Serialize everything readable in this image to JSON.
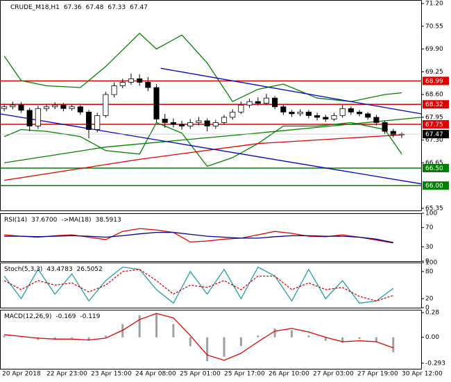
{
  "chart_data": {
    "type": "candlestick",
    "header": [
      "CRUDE_M18,H1",
      67.36,
      67.48,
      67.33,
      67.47
    ],
    "xlim": [
      -0.5,
      49.3
    ],
    "xlabels": [
      "20 Apr 2018",
      "22 Apr 23:00",
      "23 Apr 15:00",
      "24 Apr 08:00",
      "25 Apr 01:00",
      "25 Apr 17:00",
      "26 Apr 10:00",
      "27 Apr 03:00",
      "27 Apr 19:00",
      "30 Apr 12:00"
    ],
    "ylim": [
      65.29,
      71.3
    ],
    "yticks": [
      {
        "value": 71.2,
        "label": "71.20"
      },
      70.55,
      {
        "value": 69.9,
        "label": "69.90"
      },
      69.25,
      {
        "value": 68.6,
        "label": "68.60"
      },
      67.95,
      {
        "value": 67.3,
        "label": "67.30"
      },
      66.65,
      65.35
    ],
    "up_color": "#ffffff",
    "down_color": "#000000",
    "candles": [
      [
        68.2,
        68.32,
        68.12,
        68.25
      ],
      [
        68.25,
        68.4,
        68.18,
        68.3
      ],
      [
        68.3,
        68.38,
        68.08,
        68.15
      ],
      [
        68.15,
        68.22,
        67.55,
        67.7
      ],
      [
        67.7,
        68.28,
        67.62,
        68.2
      ],
      [
        68.2,
        68.33,
        68.12,
        68.25
      ],
      [
        68.25,
        68.38,
        68.18,
        68.3
      ],
      [
        68.3,
        68.36,
        68.12,
        68.2
      ],
      [
        68.2,
        68.32,
        68.14,
        68.25
      ],
      [
        68.25,
        68.3,
        68.02,
        68.1
      ],
      [
        68.1,
        68.16,
        67.35,
        67.6
      ],
      [
        67.6,
        68.08,
        67.52,
        68.0
      ],
      [
        68.0,
        68.68,
        67.94,
        68.6
      ],
      [
        68.6,
        68.95,
        68.52,
        68.85
      ],
      [
        68.85,
        69.05,
        68.78,
        68.95
      ],
      [
        68.95,
        69.2,
        68.88,
        69.05
      ],
      [
        69.05,
        69.18,
        68.85,
        68.95
      ],
      [
        68.95,
        69.1,
        68.7,
        68.8
      ],
      [
        68.8,
        68.9,
        67.8,
        67.9
      ],
      [
        67.9,
        68.05,
        67.65,
        67.8
      ],
      [
        67.8,
        67.92,
        67.66,
        67.75
      ],
      [
        67.75,
        67.85,
        67.6,
        67.7
      ],
      [
        67.7,
        67.9,
        67.62,
        67.8
      ],
      [
        67.8,
        67.96,
        67.72,
        67.85
      ],
      [
        67.85,
        67.92,
        67.55,
        67.7
      ],
      [
        67.7,
        67.88,
        67.62,
        67.8
      ],
      [
        67.8,
        68.02,
        67.74,
        67.95
      ],
      [
        67.95,
        68.18,
        67.88,
        68.1
      ],
      [
        68.1,
        68.4,
        68.04,
        68.3
      ],
      [
        68.3,
        68.48,
        68.22,
        68.4
      ],
      [
        68.4,
        68.52,
        68.28,
        68.35
      ],
      [
        68.35,
        68.62,
        68.3,
        68.5
      ],
      [
        68.5,
        68.56,
        68.18,
        68.25
      ],
      [
        68.25,
        68.32,
        68.02,
        68.1
      ],
      [
        68.1,
        68.16,
        67.96,
        68.05
      ],
      [
        68.05,
        68.18,
        67.98,
        68.1
      ],
      [
        68.1,
        68.16,
        67.92,
        68.0
      ],
      [
        68.0,
        68.08,
        67.86,
        67.95
      ],
      [
        67.95,
        68.02,
        67.82,
        67.9
      ],
      [
        67.9,
        68.08,
        67.84,
        68.0
      ],
      [
        68.0,
        68.3,
        67.94,
        68.2
      ],
      [
        68.2,
        68.26,
        68.02,
        68.1
      ],
      [
        68.1,
        68.16,
        67.98,
        68.05
      ],
      [
        68.05,
        68.1,
        67.88,
        67.95
      ],
      [
        67.95,
        68.02,
        67.72,
        67.8
      ],
      [
        67.8,
        67.86,
        67.48,
        67.55
      ],
      [
        67.55,
        67.62,
        67.38,
        67.45
      ],
      [
        67.45,
        67.52,
        67.36,
        67.47
      ]
    ],
    "lines": [
      {
        "color": "#008000",
        "x": [
          0,
          2,
          5,
          9,
          12,
          16,
          18,
          21,
          24,
          27,
          30,
          33,
          37,
          41,
          45,
          47
        ],
        "values": [
          69.7,
          69.0,
          68.85,
          68.8,
          69.4,
          70.35,
          69.9,
          70.3,
          69.5,
          68.4,
          68.75,
          68.9,
          68.5,
          68.4,
          68.6,
          68.65
        ]
      },
      {
        "color": "#008000",
        "x": [
          0,
          2,
          5,
          9,
          12,
          16,
          18,
          21,
          24,
          27,
          30,
          33,
          37,
          41,
          45,
          47
        ],
        "values": [
          67.4,
          67.6,
          67.55,
          67.4,
          67.0,
          66.9,
          67.8,
          67.5,
          66.55,
          66.8,
          67.2,
          67.7,
          67.7,
          67.8,
          67.6,
          66.9
        ]
      },
      {
        "color": "#008000",
        "x": [
          0,
          12,
          30,
          49.3
        ],
        "values": [
          66.65,
          67.1,
          67.5,
          67.95
        ]
      },
      {
        "color": "#e00000",
        "x": [
          0,
          16,
          30,
          47
        ],
        "values": [
          66.15,
          66.75,
          67.2,
          67.45
        ]
      },
      {
        "color": "#0000cc",
        "x": [
          18.5,
          49.3
        ],
        "values": [
          69.35,
          68.05
        ]
      },
      {
        "color": "#0000cc",
        "x": [
          -0.5,
          49.3
        ],
        "values": [
          68.05,
          66.05
        ]
      }
    ],
    "levels": [
      {
        "value": 68.99,
        "color": "#e00000"
      },
      {
        "value": 68.32,
        "color": "#e00000"
      },
      {
        "value": 67.75,
        "color": "#e00000"
      },
      {
        "value": 66.5,
        "label": "66.50",
        "color": "#008000"
      },
      {
        "value": 66.0,
        "label": "66.00",
        "color": "#008000"
      }
    ],
    "last_price": {
      "value": 67.47,
      "color": "#000000"
    },
    "panels": [
      {
        "type": "line",
        "header": [
          "RSI(14)",
          {
            "value": 37.67,
            "label": "37.6700"
          },
          "->MA(18)",
          38.5913
        ],
        "ylim": [
          0,
          100
        ],
        "yticks": [
          100,
          70,
          30,
          0
        ],
        "x": [
          0,
          2,
          4,
          6,
          8,
          10,
          12,
          14,
          16,
          18,
          20,
          22,
          24,
          26,
          28,
          30,
          32,
          34,
          36,
          38,
          40,
          42,
          44,
          46
        ],
        "series": [
          {
            "color": "#e00000",
            "values": [
              55,
              52,
              50,
              53,
              55,
              50,
              45,
              62,
              68,
              65,
              60,
              40,
              42,
              46,
              48,
              55,
              62,
              58,
              52,
              51,
              55,
              50,
              44,
              38
            ]
          },
          {
            "color": "#00008b",
            "values": [
              52,
              52,
              51,
              52,
              53,
              52,
              50,
              53,
              57,
              60,
              60,
              56,
              52,
              50,
              48,
              48,
              51,
              53,
              53,
              52,
              52,
              50,
              46,
              39
            ]
          }
        ]
      },
      {
        "type": "line",
        "header": [
          "Stoch(5,3,3)",
          43.4783,
          26.5052
        ],
        "ylim": [
          0,
          100
        ],
        "yticks": [
          100,
          80,
          20,
          0
        ],
        "x": [
          0,
          2,
          4,
          6,
          8,
          10,
          12,
          14,
          16,
          18,
          20,
          22,
          24,
          26,
          28,
          30,
          32,
          34,
          36,
          38,
          40,
          42,
          44,
          46
        ],
        "series": [
          {
            "color": "#20a0a0",
            "values": [
              70,
              20,
              85,
              30,
              75,
              15,
              60,
              90,
              85,
              40,
              10,
              80,
              30,
              85,
              20,
              90,
              70,
              15,
              85,
              20,
              60,
              10,
              15,
              43
            ]
          },
          {
            "color": "#e00000",
            "dash": true,
            "values": [
              60,
              40,
              60,
              50,
              55,
              35,
              50,
              80,
              85,
              60,
              30,
              50,
              45,
              60,
              40,
              70,
              70,
              40,
              55,
              40,
              45,
              25,
              15,
              27
            ]
          }
        ]
      },
      {
        "type": "macd",
        "header": [
          "MACD(12,26,9)",
          -0.169,
          -0.119
        ],
        "ylim": [
          -0.357,
          0.312
        ],
        "yticks": [
          0.28,
          {
            "value": 0,
            "label": "0.00"
          },
          -0.293
        ],
        "x": [
          0,
          2,
          4,
          6,
          8,
          10,
          12,
          14,
          16,
          18,
          20,
          22,
          24,
          26,
          28,
          30,
          32,
          34,
          36,
          38,
          40,
          42,
          44,
          46
        ],
        "histogram": {
          "color": "#a0a0a0",
          "values": [
            0.02,
            0.0,
            -0.03,
            -0.02,
            -0.01,
            -0.04,
            0.02,
            0.15,
            0.25,
            0.27,
            0.15,
            -0.1,
            -0.27,
            -0.22,
            -0.1,
            0.02,
            0.1,
            0.08,
            0.02,
            -0.04,
            -0.06,
            -0.02,
            -0.05,
            -0.17
          ]
        },
        "series": [
          {
            "color": "#e00000",
            "values": [
              0.03,
              0.01,
              -0.01,
              -0.02,
              -0.02,
              -0.03,
              -0.01,
              0.08,
              0.2,
              0.27,
              0.22,
              0.02,
              -0.2,
              -0.26,
              -0.18,
              -0.05,
              0.07,
              0.1,
              0.06,
              0.0,
              -0.05,
              -0.04,
              -0.05,
              -0.12
            ]
          }
        ]
      }
    ]
  }
}
